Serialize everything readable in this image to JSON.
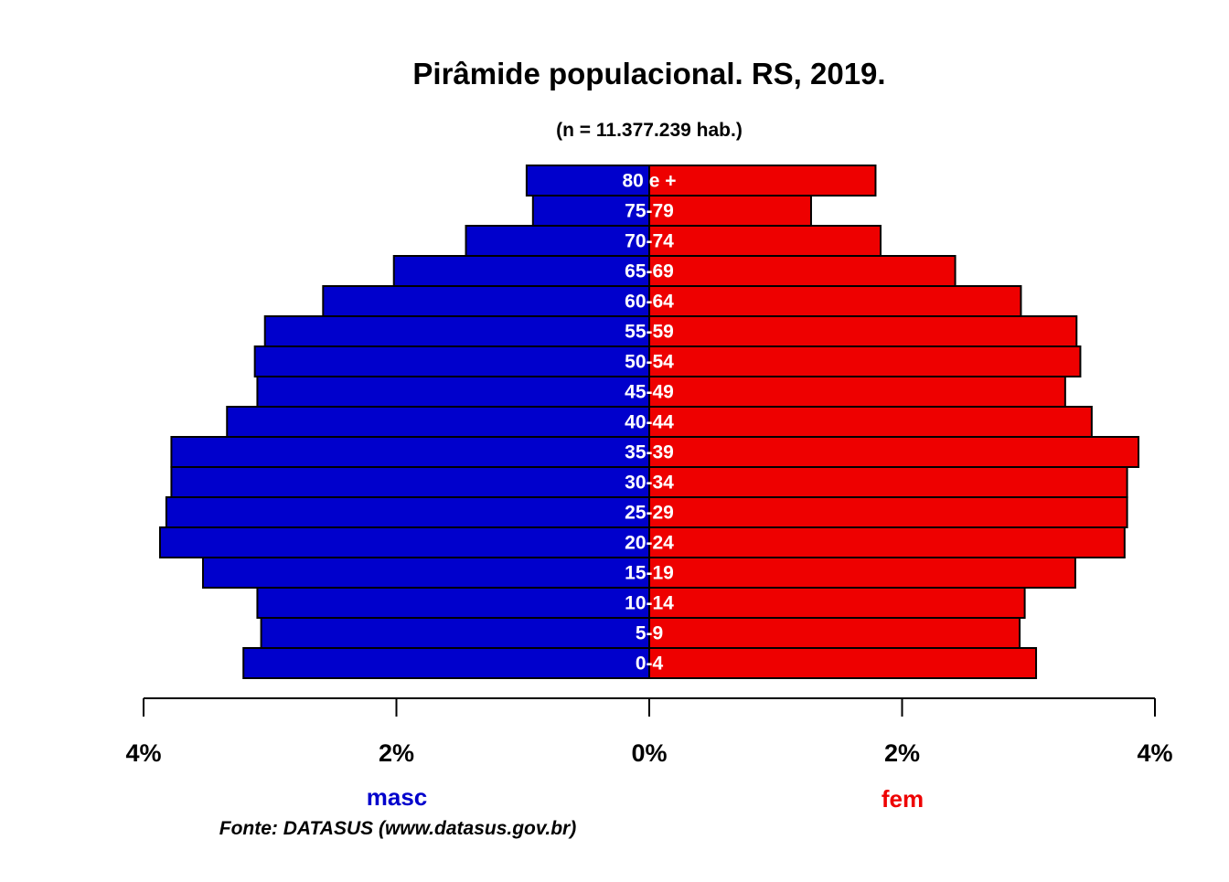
{
  "chart_data": {
    "type": "bar",
    "orientation": "horizontal-pyramid",
    "title": "Pirâmide populacional.  RS,  2019.",
    "subtitle": "(n = 11.377.239 hab.)",
    "categories": [
      "0-4",
      "5-9",
      "10-14",
      "15-19",
      "20-24",
      "25-29",
      "30-34",
      "35-39",
      "40-44",
      "45-49",
      "50-54",
      "55-59",
      "60-64",
      "65-69",
      "70-74",
      "75-79",
      "80 e +"
    ],
    "series": [
      {
        "name": "masc",
        "color": "#0000cc",
        "values": [
          3.21,
          3.07,
          3.1,
          3.53,
          3.87,
          3.82,
          3.78,
          3.78,
          3.34,
          3.1,
          3.12,
          3.04,
          2.58,
          2.02,
          1.45,
          0.92,
          0.97
        ]
      },
      {
        "name": "fem",
        "color": "#ee0000",
        "values": [
          3.06,
          2.93,
          2.97,
          3.37,
          3.76,
          3.78,
          3.78,
          3.87,
          3.5,
          3.29,
          3.41,
          3.38,
          2.94,
          2.42,
          1.83,
          1.28,
          1.79
        ]
      }
    ],
    "xlim": [
      -4,
      4
    ],
    "xticks": [
      {
        "value": -4,
        "label": "4%"
      },
      {
        "value": -2,
        "label": "2%"
      },
      {
        "value": 0,
        "label": "0%"
      },
      {
        "value": 2,
        "label": "2%"
      },
      {
        "value": 4,
        "label": "4%"
      }
    ],
    "source": "Fonte: DATASUS (www.datasus.gov.br)"
  }
}
